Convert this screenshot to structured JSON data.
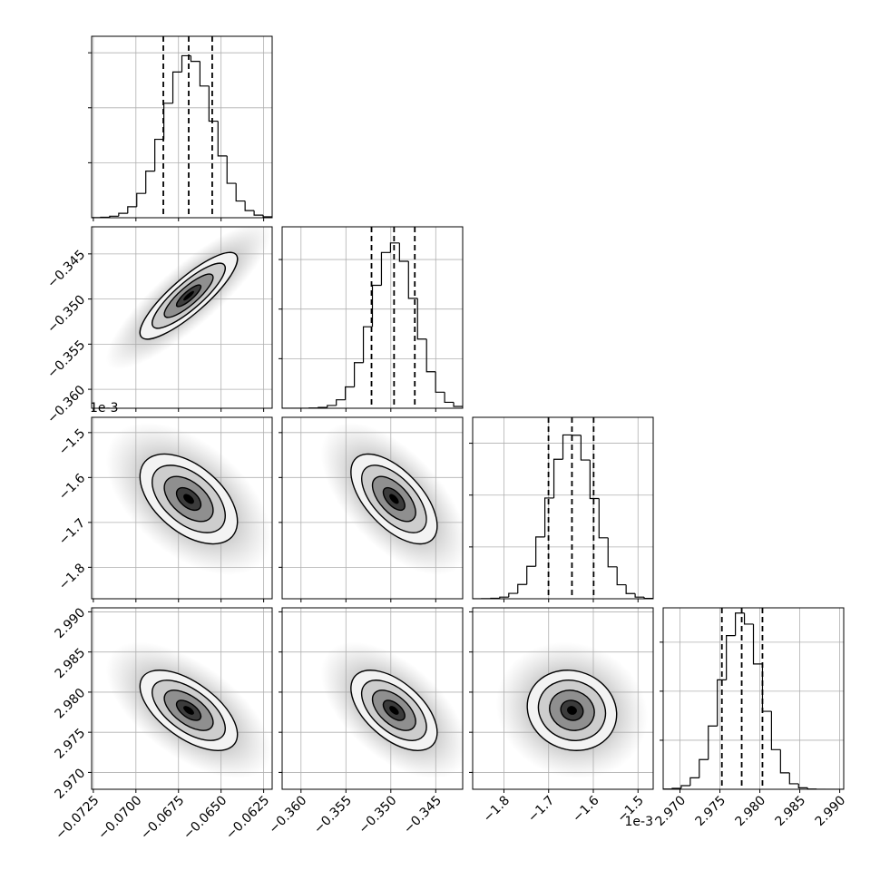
{
  "chart_data": {
    "type": "corner",
    "grid": true,
    "color": "#000000",
    "contour_levels": [
      0.5,
      1,
      1.5,
      2
    ],
    "parameters": [
      {
        "xlim": [
          -0.0726,
          -0.062
        ],
        "ticks": [
          {
            "value": -0.0725,
            "label": "−0.0725"
          },
          {
            "value": -0.07,
            "label": "−0.0700"
          },
          {
            "value": -0.0675,
            "label": "−0.0675"
          },
          {
            "value": -0.065,
            "label": "−0.0650"
          },
          {
            "value": -0.0625,
            "label": "−0.0625"
          }
        ],
        "quantiles": [
          -0.06839,
          -0.0669,
          -0.06552
        ],
        "sd": 0.00143,
        "bins": [
          -0.0726,
          -0.07207,
          -0.07154,
          -0.07101,
          -0.07048,
          -0.06995,
          -0.06942,
          -0.06889,
          -0.06836,
          -0.06783,
          -0.0673,
          -0.06677,
          -0.06624,
          -0.06571,
          -0.06518,
          -0.06465,
          -0.06412,
          -0.06359,
          -0.06306,
          -0.06253,
          -0.062
        ],
        "counts": [
          1,
          4,
          14,
          40,
          100,
          221,
          424,
          713,
          1041,
          1325,
          1473,
          1422,
          1198,
          878,
          562,
          313,
          152,
          65,
          24,
          8
        ],
        "count_lim": [
          0,
          1650
        ],
        "count_ticks": [
          500,
          1000,
          1500
        ]
      },
      {
        "xlim": [
          -0.3621,
          -0.342
        ],
        "ticks": [
          {
            "value": -0.36,
            "label": "−0.360"
          },
          {
            "value": -0.355,
            "label": "−0.355"
          },
          {
            "value": -0.35,
            "label": "−0.350"
          },
          {
            "value": -0.345,
            "label": "−0.345"
          }
        ],
        "quantiles": [
          -0.35215,
          -0.34964,
          -0.34733
        ],
        "sd": 0.0024,
        "bins": [
          -0.3621,
          -0.361095,
          -0.36009,
          -0.359085,
          -0.35808,
          -0.357075,
          -0.35607,
          -0.355065,
          -0.35406,
          -0.353055,
          -0.35205,
          -0.351045,
          -0.35004,
          -0.349035,
          -0.34803,
          -0.347025,
          -0.34602,
          -0.345015,
          -0.34401,
          -0.343005,
          -0.342
        ],
        "counts": [
          0,
          0,
          0,
          2,
          8,
          28,
          85,
          215,
          460,
          822,
          1240,
          1571,
          1667,
          1482,
          1108,
          698,
          368,
          162,
          60,
          18
        ],
        "count_lim": [
          0,
          1830
        ],
        "count_ticks": [
          500,
          1000,
          1500
        ]
      },
      {
        "xlim": [
          -1.87,
          -1.466
        ],
        "ticks": [
          {
            "value": -1.8,
            "label": "−1.8"
          },
          {
            "value": -1.7,
            "label": "−1.7"
          },
          {
            "value": -1.6,
            "label": "−1.6"
          },
          {
            "value": -1.5,
            "label": "−1.5"
          }
        ],
        "offset_label": "1e-3",
        "quantiles": [
          -1.70032,
          -1.6478,
          -1.5993
        ],
        "sd": 0.05,
        "bins": [
          -1.87,
          -1.8498,
          -1.8296,
          -1.8094,
          -1.7892,
          -1.769,
          -1.7488,
          -1.7286,
          -1.7084,
          -1.6882,
          -1.668,
          -1.6478,
          -1.6276,
          -1.6074,
          -1.5872,
          -1.567,
          -1.5468,
          -1.5266,
          -1.5064,
          -1.4862,
          -1.466
        ],
        "counts": [
          0,
          1,
          5,
          16,
          52,
          138,
          313,
          596,
          972,
          1345,
          1580,
          1577,
          1338,
          967,
          588,
          308,
          135,
          50,
          16,
          4
        ],
        "count_lim": [
          0,
          1750
        ],
        "count_ticks": [
          500,
          1000,
          1500
        ]
      },
      {
        "xlim": [
          2.9679,
          2.9905
        ],
        "ticks": [
          {
            "value": 2.97,
            "label": "2.970"
          },
          {
            "value": 2.975,
            "label": "2.975"
          },
          {
            "value": 2.98,
            "label": "2.980"
          },
          {
            "value": 2.985,
            "label": "2.985"
          },
          {
            "value": 2.99,
            "label": "2.990"
          }
        ],
        "quantiles": [
          2.97525,
          2.97773,
          2.98033
        ],
        "sd": 0.0025,
        "bins": [
          2.9679,
          2.96903,
          2.97016,
          2.97129,
          2.97242,
          2.97355,
          2.97468,
          2.97581,
          2.97694,
          2.97807,
          2.9792,
          2.98033,
          2.98146,
          2.98259,
          2.98372,
          2.98485,
          2.98598,
          2.98711,
          2.98824,
          2.98937,
          2.9905
        ],
        "counts": [
          2,
          9,
          37,
          117,
          303,
          645,
          1116,
          1567,
          1797,
          1684,
          1278,
          795,
          404,
          168,
          56,
          15,
          3,
          0,
          0,
          0
        ],
        "count_lim": [
          0,
          1850
        ],
        "count_ticks": [
          500,
          1000,
          1500
        ]
      }
    ],
    "pairs": [
      {
        "x": 0,
        "y": 1,
        "correlation": 0.85
      },
      {
        "x": 0,
        "y": 2,
        "correlation": -0.5
      },
      {
        "x": 1,
        "y": 2,
        "correlation": -0.6
      },
      {
        "x": 0,
        "y": 3,
        "correlation": -0.6
      },
      {
        "x": 1,
        "y": 3,
        "correlation": -0.55
      },
      {
        "x": 2,
        "y": 3,
        "correlation": -0.1
      }
    ]
  }
}
